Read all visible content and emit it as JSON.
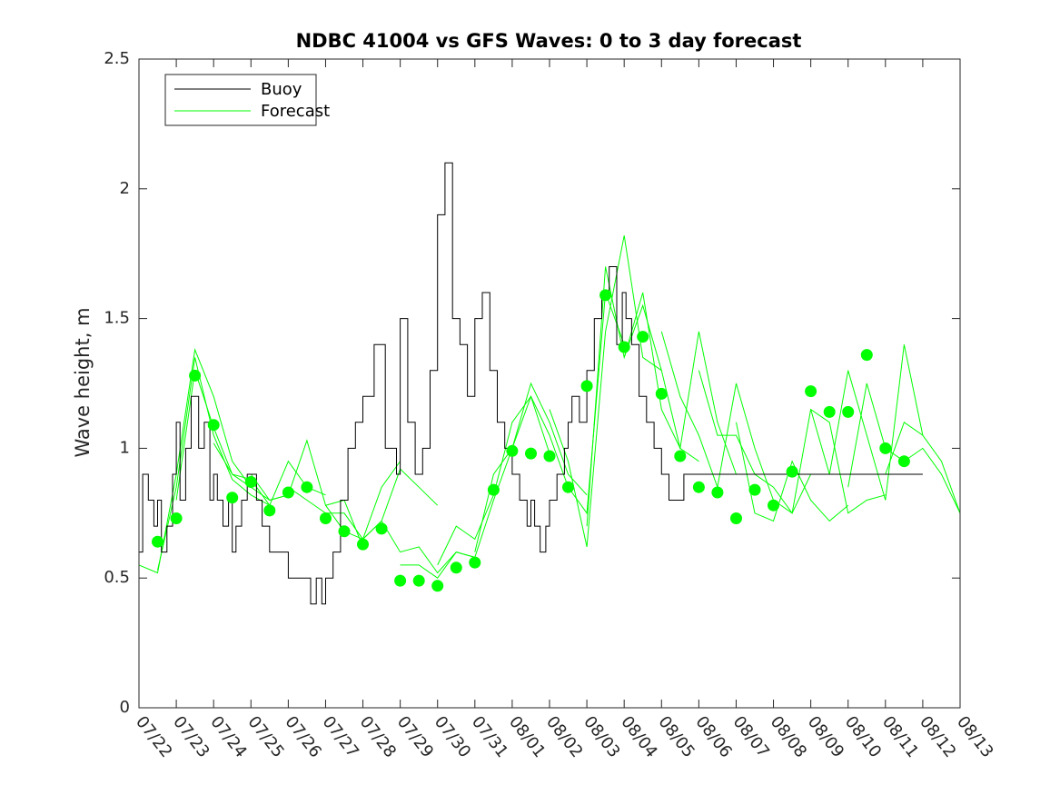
{
  "chart_data": {
    "type": "line",
    "title": "NDBC 41004 vs GFS Waves: 0 to 3 day forecast",
    "xlabel": "",
    "ylabel": "Wave height, m",
    "x_ticks": [
      "07/22",
      "07/23",
      "07/24",
      "07/25",
      "07/26",
      "07/27",
      "07/28",
      "07/29",
      "07/30",
      "07/31",
      "08/01",
      "08/02",
      "08/03",
      "08/04",
      "08/05",
      "08/06",
      "08/07",
      "08/08",
      "08/09",
      "08/10",
      "08/11",
      "08/12",
      "08/13"
    ],
    "y_ticks": [
      "0",
      "0.5",
      "1",
      "1.5",
      "2",
      "2.5"
    ],
    "xlim": [
      0,
      22
    ],
    "ylim": [
      0,
      2.5
    ],
    "grid": false,
    "legend": {
      "location": "top-left",
      "entries": [
        "Buoy",
        "Forecast"
      ]
    },
    "colors": {
      "buoy": "#000000",
      "forecast": "#00ff00"
    },
    "series": [
      {
        "name": "Buoy",
        "color": "#000000",
        "x": [
          0,
          0.1,
          0.25,
          0.4,
          0.5,
          0.6,
          0.75,
          0.9,
          1,
          1.1,
          1.25,
          1.4,
          1.5,
          1.6,
          1.75,
          1.9,
          2,
          2.1,
          2.25,
          2.4,
          2.5,
          2.6,
          2.75,
          2.9,
          3,
          3.15,
          3.3,
          3.5,
          3.7,
          3.9,
          4,
          4.2,
          4.4,
          4.5,
          4.6,
          4.75,
          4.9,
          5,
          5.2,
          5.4,
          5.6,
          5.8,
          6,
          6.3,
          6.6,
          6.9,
          7,
          7.2,
          7.4,
          7.6,
          7.8,
          8,
          8.2,
          8.4,
          8.6,
          8.8,
          9,
          9.2,
          9.4,
          9.6,
          9.8,
          10,
          10.2,
          10.4,
          10.5,
          10.6,
          10.75,
          10.9,
          11,
          11.2,
          11.4,
          11.5,
          11.6,
          11.8,
          12,
          12.2,
          12.4,
          12.6,
          12.8,
          12.95,
          13.05,
          13.2,
          13.4,
          13.6,
          13.8,
          14,
          14.2,
          14.4,
          14.6,
          14.8,
          15,
          15.2,
          15.4,
          15.6,
          15.8,
          16,
          16.2,
          16.4,
          16.6,
          16.8,
          17,
          17.2,
          17.4,
          17.6,
          17.8,
          18,
          18.2,
          18.4,
          18.6,
          18.8,
          19,
          19.2,
          19.4,
          19.6,
          19.8,
          20,
          20.2,
          20.4,
          20.6,
          20.8,
          21
        ],
        "values": [
          0.6,
          0.9,
          0.8,
          0.7,
          0.8,
          0.6,
          0.7,
          0.9,
          1.1,
          0.8,
          1.0,
          1.2,
          1.2,
          1.0,
          1.1,
          0.8,
          0.9,
          0.8,
          0.7,
          0.8,
          0.6,
          0.7,
          0.8,
          0.9,
          0.9,
          0.8,
          0.7,
          0.6,
          0.6,
          0.6,
          0.5,
          0.5,
          0.5,
          0.5,
          0.4,
          0.5,
          0.4,
          0.5,
          0.6,
          0.8,
          1.0,
          1.1,
          1.2,
          1.4,
          1.0,
          0.9,
          1.5,
          1.1,
          0.9,
          1.0,
          1.3,
          1.9,
          2.1,
          1.5,
          1.4,
          1.2,
          1.5,
          1.6,
          1.3,
          1.1,
          1.0,
          0.9,
          0.8,
          0.7,
          0.8,
          0.7,
          0.6,
          0.7,
          0.8,
          0.9,
          1.0,
          1.1,
          1.2,
          1.1,
          1.3,
          1.5,
          1.6,
          1.7,
          1.4,
          1.6,
          1.5,
          1.4,
          1.2,
          1.1,
          1.0,
          0.9,
          0.8,
          0.8,
          0.9,
          0.9,
          0.9,
          0.9,
          0.9,
          0.9,
          0.9,
          0.9,
          0.9,
          0.9,
          0.9,
          0.9,
          0.9,
          0.9,
          0.9,
          0.9,
          0.9,
          0.9,
          0.9,
          0.9,
          0.9,
          0.9,
          0.9,
          0.9,
          0.9,
          0.9,
          0.9,
          0.9,
          0.9,
          0.9,
          0.9,
          0.9,
          0.9
        ]
      },
      {
        "name": "Forecast",
        "color": "#00ff00",
        "x": [
          0.5,
          1,
          1.5,
          2,
          2.5,
          3,
          3.5,
          4,
          4.5,
          5,
          5.5,
          6,
          6.5,
          7,
          7.5,
          8,
          8.5,
          9,
          9.5,
          10,
          10.5,
          11,
          11.5,
          12,
          12.5,
          13,
          13.5,
          14,
          14.5,
          15,
          15.5,
          16,
          16.5,
          17,
          17.5,
          18,
          18.5,
          19,
          19.5,
          20,
          20.5
        ],
        "values": [
          0.64,
          0.73,
          1.28,
          1.09,
          0.81,
          0.87,
          0.76,
          0.83,
          0.85,
          0.73,
          0.68,
          0.63,
          0.69,
          0.49,
          0.49,
          0.47,
          0.54,
          0.56,
          0.84,
          0.99,
          0.98,
          0.97,
          0.85,
          1.24,
          1.59,
          1.39,
          1.43,
          1.21,
          0.97,
          0.85,
          0.83,
          0.73,
          0.84,
          0.78,
          0.91,
          1.22,
          1.14,
          1.14,
          1.36,
          1.0,
          0.95
        ]
      }
    ],
    "forecast_traces": [
      {
        "x": [
          0,
          0.5,
          1,
          1.5,
          2,
          2.5,
          3
        ],
        "values": [
          0.55,
          0.52,
          0.9,
          1.38,
          1.2,
          0.95,
          0.85
        ]
      },
      {
        "x": [
          0.5,
          1,
          1.5,
          2,
          2.5,
          3,
          3.5
        ],
        "values": [
          0.53,
          0.85,
          1.35,
          1.05,
          0.88,
          0.82,
          0.78
        ]
      },
      {
        "x": [
          1,
          1.5,
          2,
          2.5,
          3,
          3.5,
          4
        ],
        "values": [
          0.8,
          1.3,
          1.08,
          0.9,
          0.85,
          0.8,
          0.82
        ]
      },
      {
        "x": [
          2,
          2.5,
          3,
          3.5,
          4,
          4.5,
          5
        ],
        "values": [
          1.02,
          0.9,
          0.88,
          0.78,
          0.95,
          0.85,
          0.82
        ]
      },
      {
        "x": [
          3,
          3.5,
          4,
          4.5,
          5,
          5.5,
          6
        ],
        "values": [
          0.9,
          0.8,
          0.82,
          1.03,
          0.78,
          0.8,
          0.62
        ]
      },
      {
        "x": [
          4,
          4.5,
          5,
          5.5,
          6,
          6.5,
          7
        ],
        "values": [
          0.85,
          0.8,
          0.75,
          0.75,
          0.65,
          0.85,
          0.95
        ]
      },
      {
        "x": [
          5,
          5.5,
          6,
          6.5,
          7,
          7.5,
          8
        ],
        "values": [
          0.78,
          0.68,
          0.65,
          0.72,
          0.92,
          0.85,
          0.78
        ]
      },
      {
        "x": [
          6,
          6.5,
          7,
          7.5,
          8,
          8.5,
          9
        ],
        "values": [
          0.65,
          0.72,
          0.6,
          0.62,
          0.52,
          0.6,
          0.58
        ]
      },
      {
        "x": [
          7,
          7.5,
          8,
          8.5,
          9,
          9.5,
          10
        ],
        "values": [
          0.55,
          0.55,
          0.5,
          0.6,
          0.58,
          0.8,
          1.0
        ]
      },
      {
        "x": [
          8,
          8.5,
          9,
          9.5,
          10,
          10.5,
          11
        ],
        "values": [
          0.55,
          0.7,
          0.65,
          0.82,
          1.1,
          1.2,
          0.98
        ]
      },
      {
        "x": [
          9,
          9.5,
          10,
          10.5,
          11,
          11.5,
          12
        ],
        "values": [
          0.6,
          0.9,
          1.0,
          1.25,
          1.1,
          0.9,
          0.82
        ]
      },
      {
        "x": [
          10,
          10.5,
          11,
          11.5,
          12,
          12.5,
          13
        ],
        "values": [
          1.0,
          1.2,
          1.05,
          0.85,
          0.75,
          1.6,
          1.4
        ]
      },
      {
        "x": [
          11,
          11.5,
          12,
          12.5,
          13,
          13.5,
          14
        ],
        "values": [
          1.15,
          0.95,
          0.62,
          1.45,
          1.82,
          1.35,
          1.3
        ]
      },
      {
        "x": [
          12,
          12.5,
          13,
          13.5,
          14,
          14.5,
          15
        ],
        "values": [
          0.7,
          1.7,
          1.35,
          1.55,
          1.3,
          1.0,
          0.95
        ]
      },
      {
        "x": [
          13,
          13.5,
          14,
          14.5,
          15,
          15.5,
          16
        ],
        "values": [
          1.35,
          1.6,
          1.15,
          1.0,
          1.45,
          1.1,
          0.9
        ]
      },
      {
        "x": [
          14,
          14.5,
          15,
          15.5,
          16,
          16.5,
          17
        ],
        "values": [
          1.45,
          1.2,
          1.05,
          0.85,
          1.25,
          1.0,
          0.8
        ]
      },
      {
        "x": [
          15,
          15.5,
          16,
          16.5,
          17,
          17.5,
          18
        ],
        "values": [
          1.3,
          1.05,
          1.05,
          0.9,
          0.85,
          0.75,
          0.9
        ]
      },
      {
        "x": [
          16,
          16.5,
          17,
          17.5,
          18,
          18.5,
          19
        ],
        "values": [
          1.1,
          0.75,
          0.72,
          0.95,
          0.8,
          0.72,
          0.78
        ]
      },
      {
        "x": [
          17,
          17.5,
          18,
          18.5,
          19,
          19.5,
          20
        ],
        "values": [
          0.8,
          0.75,
          1.15,
          1.1,
          0.75,
          0.8,
          0.82
        ]
      },
      {
        "x": [
          18,
          18.5,
          19,
          19.5,
          20,
          20.5,
          21
        ],
        "values": [
          1.15,
          0.9,
          1.3,
          1.05,
          0.8,
          1.4,
          1.05
        ]
      },
      {
        "x": [
          19,
          19.5,
          20,
          20.5,
          21,
          21.5,
          22
        ],
        "values": [
          0.85,
          1.25,
          1.0,
          0.95,
          1.0,
          0.9,
          0.75
        ]
      },
      {
        "x": [
          20,
          20.5,
          21,
          21.5,
          22
        ],
        "values": [
          0.9,
          1.1,
          1.05,
          0.95,
          0.75
        ]
      }
    ]
  }
}
